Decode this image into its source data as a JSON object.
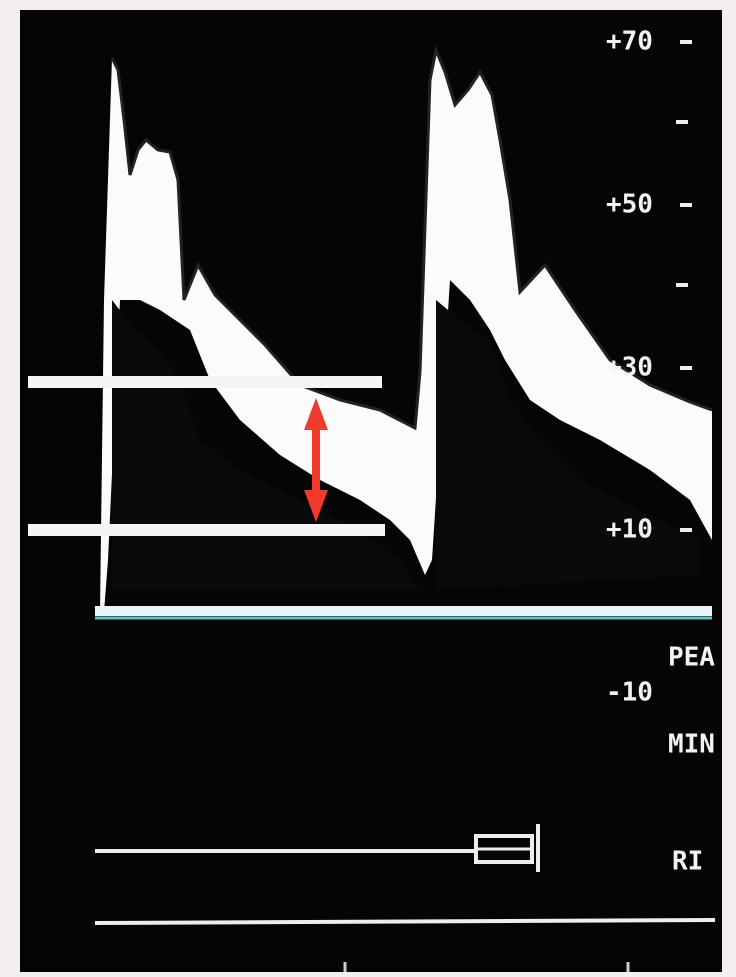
{
  "scale_labels": [
    "+70",
    "+50",
    "+30",
    "+10",
    "-10"
  ],
  "side_labels": [
    "PEA",
    "MIN",
    "RI"
  ]
}
